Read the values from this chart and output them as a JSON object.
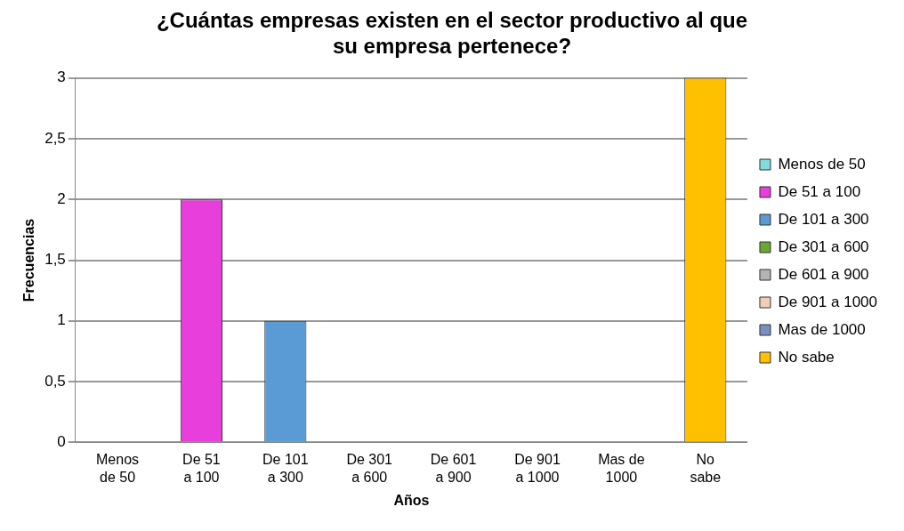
{
  "chart_data": {
    "type": "bar",
    "title": "¿Cuántas empresas existen en el sector productivo al que su empresa pertenece?",
    "xlabel": "Años",
    "ylabel": "Frecuencias",
    "categories": [
      "Menos de 50",
      "De 51 a 100",
      "De 101 a 300",
      "De 301 a 600",
      "De 601 a 900",
      "De 901 a 1000",
      "Mas de 1000",
      "No sabe"
    ],
    "series": [
      {
        "name": "Menos de 50",
        "color": "#7fdcdc",
        "values": [
          0,
          null,
          null,
          null,
          null,
          null,
          null,
          null
        ]
      },
      {
        "name": "De 51 a 100",
        "color": "#e83fdc",
        "values": [
          null,
          2,
          null,
          null,
          null,
          null,
          null,
          null
        ]
      },
      {
        "name": "De 101 a 300",
        "color": "#5b9bd5",
        "values": [
          null,
          null,
          1,
          null,
          null,
          null,
          null,
          null
        ]
      },
      {
        "name": "De 301 a 600",
        "color": "#6aa832",
        "values": [
          null,
          null,
          null,
          0,
          null,
          null,
          null,
          null
        ]
      },
      {
        "name": "De 601 a 900",
        "color": "#b4b4b4",
        "values": [
          null,
          null,
          null,
          null,
          0,
          null,
          null,
          null
        ]
      },
      {
        "name": "De 901 a 1000",
        "color": "#f4cdb8",
        "values": [
          null,
          null,
          null,
          null,
          null,
          0,
          null,
          null
        ]
      },
      {
        "name": "Mas de 1000",
        "color": "#7a8fc0",
        "values": [
          null,
          null,
          null,
          null,
          null,
          null,
          0,
          null
        ]
      },
      {
        "name": "No sabe",
        "color": "#ffc000",
        "values": [
          null,
          null,
          null,
          null,
          null,
          null,
          null,
          3
        ]
      }
    ],
    "ylim": [
      0,
      3
    ],
    "yticks": [
      0,
      {
        "value": 0.5,
        "label": "0,5"
      },
      1,
      {
        "value": 1.5,
        "label": "1,5"
      },
      2,
      {
        "value": 2.5,
        "label": "2,5"
      },
      3
    ],
    "grid": "y",
    "legend": "right"
  }
}
